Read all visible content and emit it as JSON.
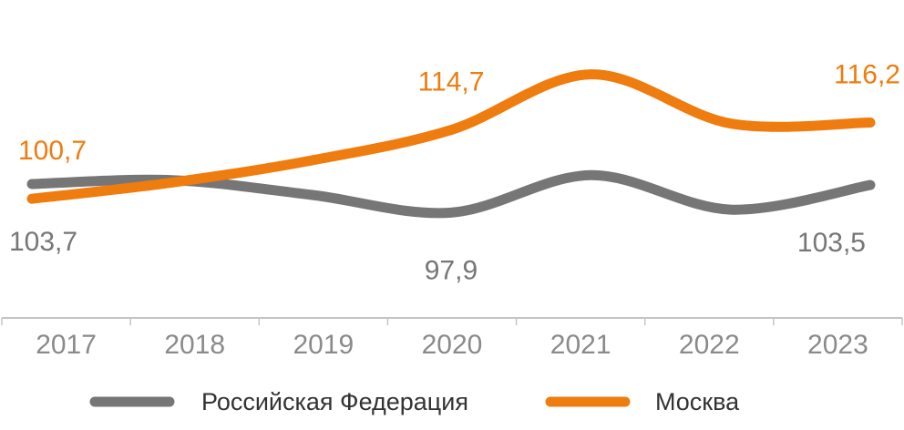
{
  "chart_data": {
    "type": "line",
    "categories": [
      "2017",
      "2018",
      "2019",
      "2020",
      "2021",
      "2022",
      "2023"
    ],
    "series": [
      {
        "name": "Российская Федерация",
        "color": "#767676",
        "values": [
          103.7,
          104.5,
          101.5,
          97.9,
          105.5,
          98.5,
          103.5
        ],
        "labels": [
          {
            "index": 0,
            "text": "103,7",
            "position": "below"
          },
          {
            "index": 3,
            "text": "97,9",
            "position": "below"
          },
          {
            "index": 6,
            "text": "103,5",
            "position": "below"
          }
        ]
      },
      {
        "name": "Москва",
        "color": "#ee7c0e",
        "values": [
          100.7,
          104.0,
          108.5,
          114.7,
          126.0,
          116.0,
          116.2
        ],
        "labels": [
          {
            "index": 0,
            "text": "100,7",
            "position": "above"
          },
          {
            "index": 3,
            "text": "114,7",
            "position": "above"
          },
          {
            "index": 6,
            "text": "116,2",
            "position": "above"
          }
        ]
      }
    ],
    "ylim": [
      80,
      130
    ],
    "title": "",
    "xlabel": "",
    "ylabel": "",
    "grid": false,
    "legend": "bottom"
  }
}
